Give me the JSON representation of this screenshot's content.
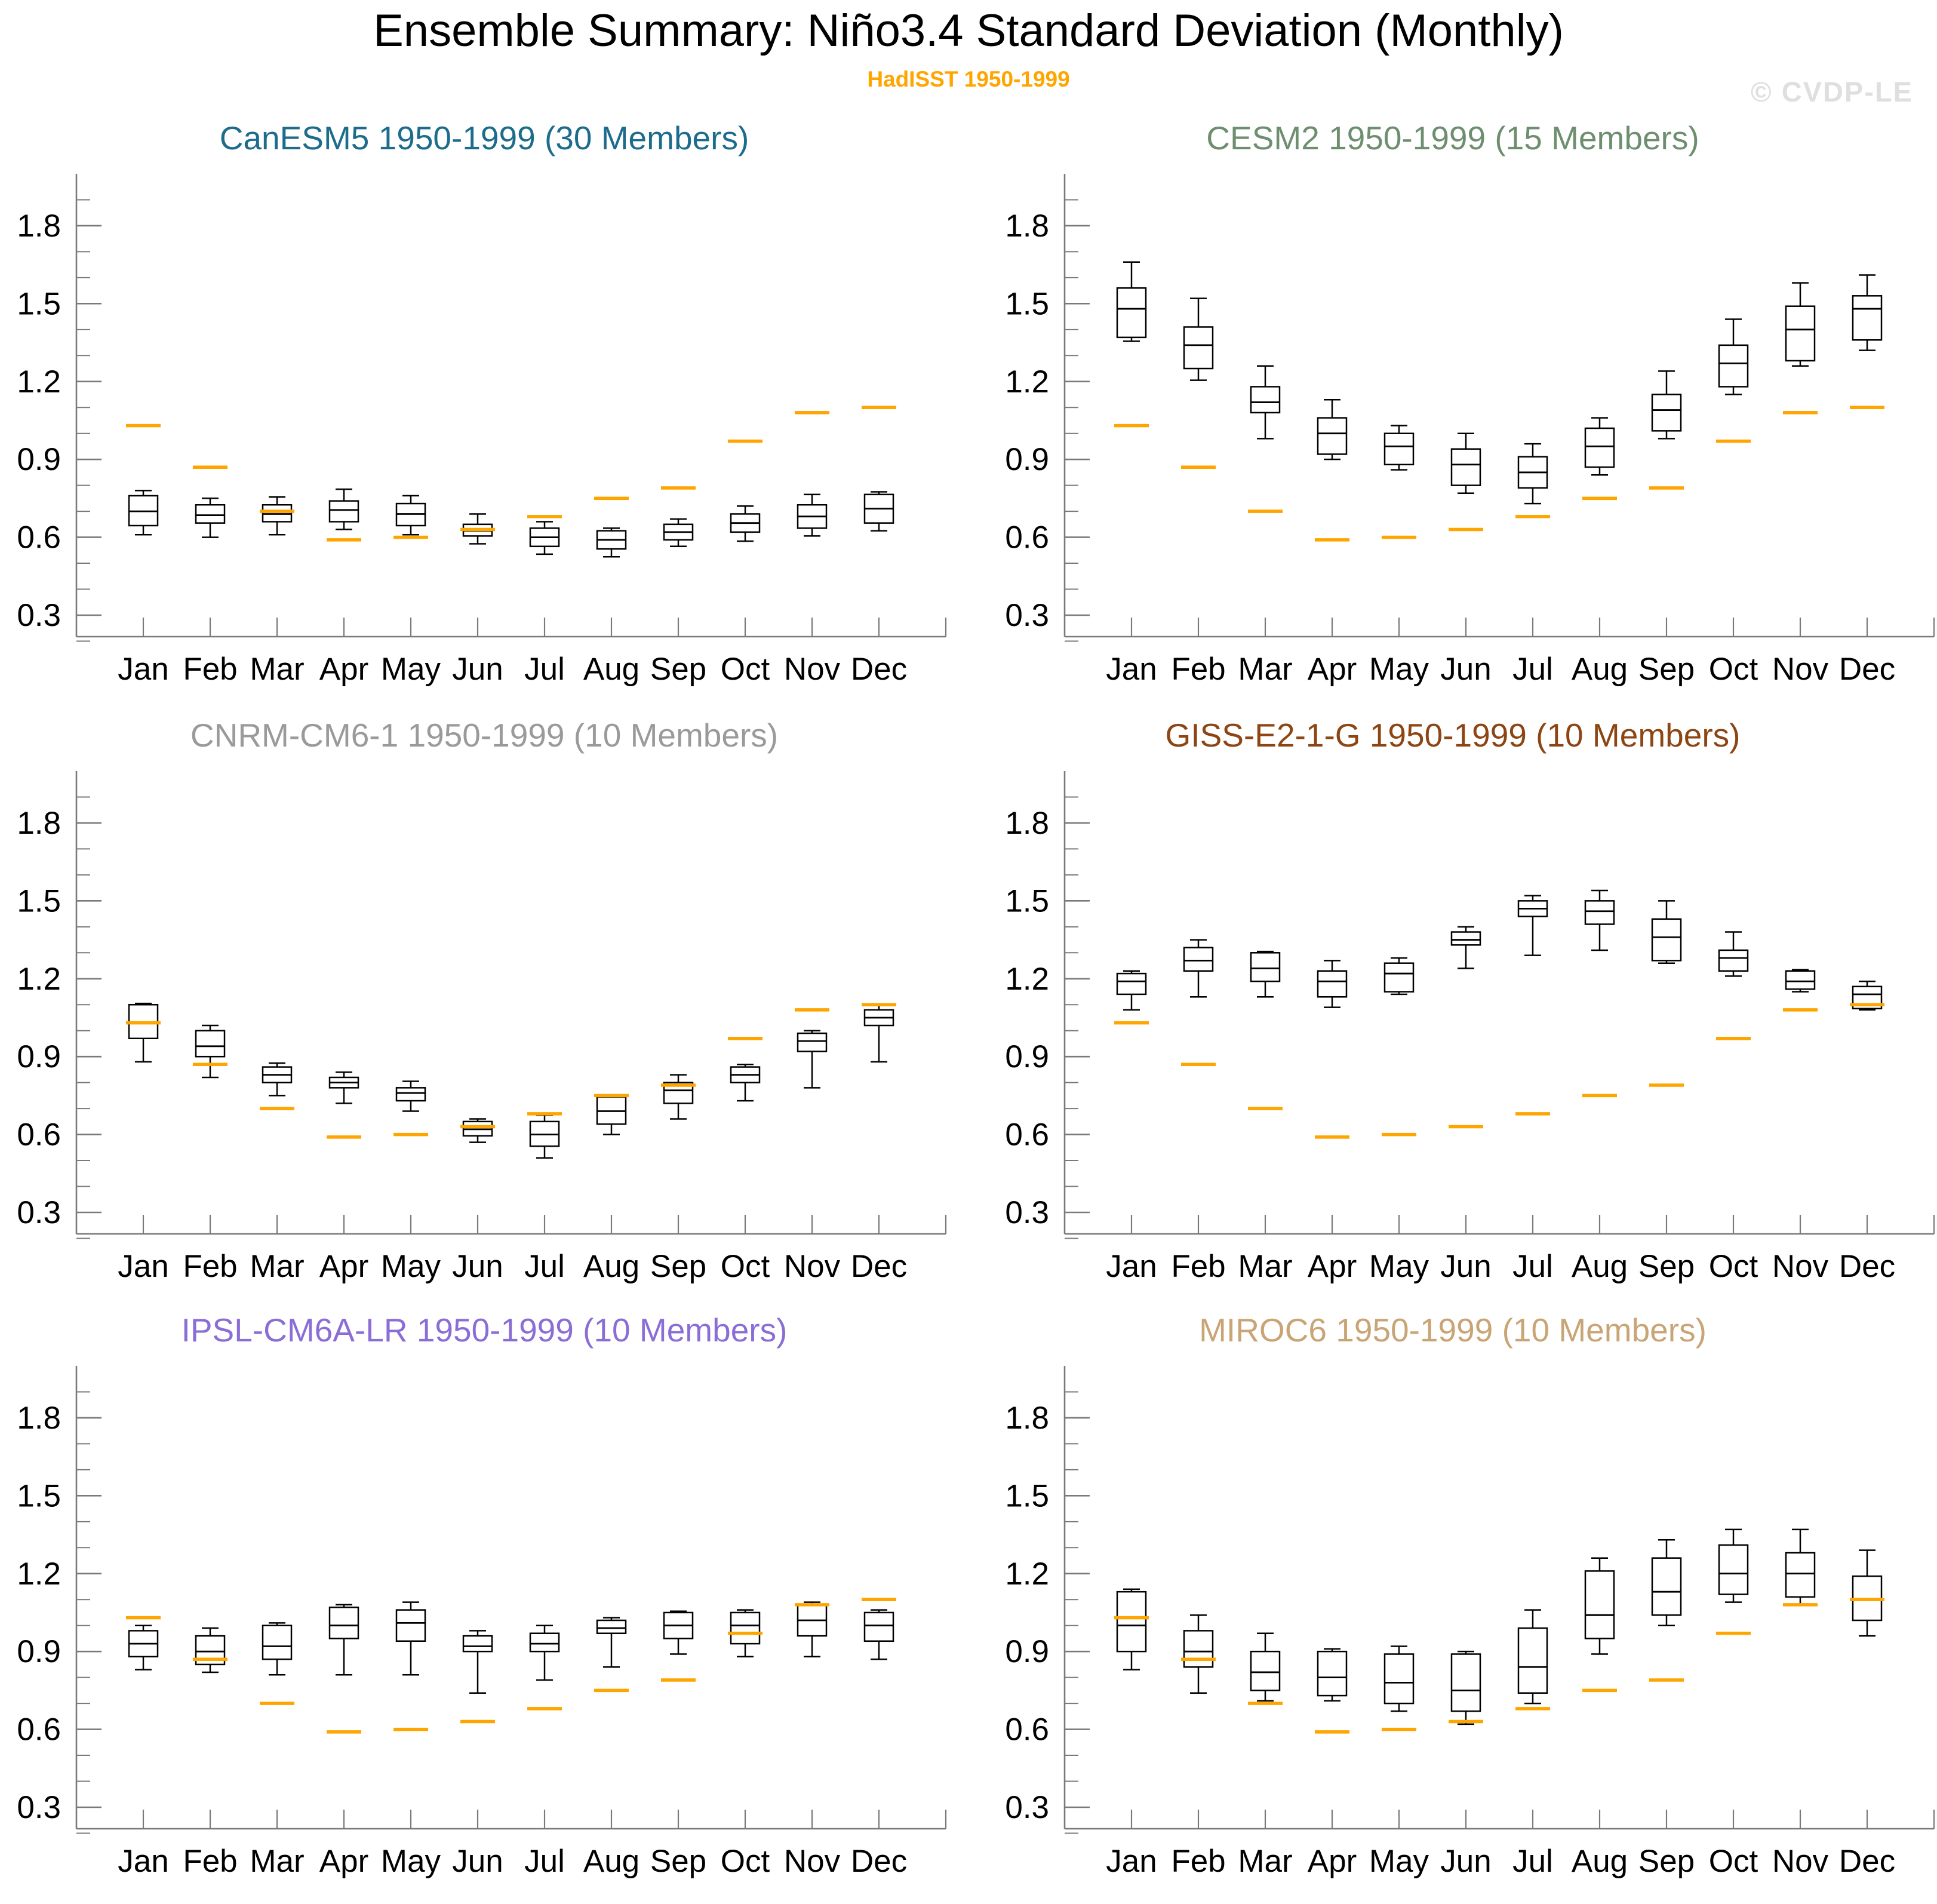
{
  "header": {
    "title": "Ensemble Summary: Niño3.4 Standard Deviation (Monthly)",
    "subtitle": "HadISST 1950-1999",
    "watermark": "© CVDP-LE"
  },
  "colors": {
    "observation": "#FFA500",
    "box_stroke": "#000000",
    "axis": "#7a7a7a",
    "text": "#000000",
    "watermark": "#dfdfdf"
  },
  "axis": {
    "ymin": 0.2,
    "ymax": 2.0,
    "major_step": 0.3,
    "minor_step": 0.1,
    "ytick_labels": [
      "0.3",
      "0.6",
      "0.9",
      "1.2",
      "1.5",
      "1.8"
    ],
    "yticks": [
      0.3,
      0.6,
      0.9,
      1.2,
      1.5,
      1.8
    ],
    "grid": false
  },
  "chart_data": {
    "type": "box",
    "title": "Ensemble Summary: Niño3.4 Standard Deviation (Monthly)",
    "categories": [
      "Jan",
      "Feb",
      "Mar",
      "Apr",
      "May",
      "Jun",
      "Jul",
      "Aug",
      "Sep",
      "Oct",
      "Nov",
      "Dec"
    ],
    "ylim": [
      0.2,
      2.0
    ],
    "yticks": [
      0.3,
      0.6,
      0.9,
      1.2,
      1.5,
      1.8
    ],
    "observation": {
      "label": "HadISST 1950-1999",
      "color": "#FFA500",
      "values": [
        1.03,
        0.87,
        0.7,
        0.59,
        0.6,
        0.63,
        0.68,
        0.75,
        0.79,
        0.97,
        1.08,
        1.1
      ]
    },
    "box_format": [
      "whisker_low",
      "q1",
      "median",
      "q3",
      "whisker_high"
    ],
    "panels": [
      {
        "model": "CanESM5",
        "title": "CanESM5 1950-1999 (30 Members)",
        "title_color": "#1d6c8b",
        "members": 30,
        "values": [
          [
            0.61,
            0.645,
            0.7,
            0.76,
            0.78
          ],
          [
            0.6,
            0.655,
            0.685,
            0.725,
            0.75
          ],
          [
            0.61,
            0.66,
            0.69,
            0.725,
            0.755
          ],
          [
            0.63,
            0.66,
            0.705,
            0.74,
            0.785
          ],
          [
            0.61,
            0.645,
            0.69,
            0.73,
            0.76
          ],
          [
            0.575,
            0.605,
            0.625,
            0.65,
            0.69
          ],
          [
            0.535,
            0.565,
            0.6,
            0.635,
            0.66
          ],
          [
            0.525,
            0.555,
            0.59,
            0.625,
            0.635
          ],
          [
            0.565,
            0.59,
            0.62,
            0.65,
            0.67
          ],
          [
            0.585,
            0.62,
            0.655,
            0.69,
            0.72
          ],
          [
            0.605,
            0.635,
            0.68,
            0.725,
            0.765
          ],
          [
            0.625,
            0.655,
            0.71,
            0.765,
            0.775
          ]
        ]
      },
      {
        "model": "CESM2",
        "title": "CESM2 1950-1999 (15 Members)",
        "title_color": "#6d8f70",
        "members": 15,
        "values": [
          [
            1.355,
            1.37,
            1.48,
            1.56,
            1.66
          ],
          [
            1.205,
            1.25,
            1.34,
            1.41,
            1.52
          ],
          [
            0.98,
            1.08,
            1.12,
            1.18,
            1.26
          ],
          [
            0.9,
            0.92,
            1.0,
            1.06,
            1.13
          ],
          [
            0.86,
            0.88,
            0.95,
            1.0,
            1.03
          ],
          [
            0.77,
            0.8,
            0.88,
            0.94,
            1.0
          ],
          [
            0.73,
            0.79,
            0.85,
            0.91,
            0.96
          ],
          [
            0.84,
            0.87,
            0.95,
            1.02,
            1.06
          ],
          [
            0.98,
            1.01,
            1.09,
            1.15,
            1.24
          ],
          [
            1.15,
            1.18,
            1.27,
            1.34,
            1.44
          ],
          [
            1.26,
            1.28,
            1.4,
            1.49,
            1.58
          ],
          [
            1.32,
            1.36,
            1.48,
            1.53,
            1.61
          ]
        ]
      },
      {
        "model": "CNRM-CM6-1",
        "title": "CNRM-CM6-1 1950-1999 (10 Members)",
        "title_color": "#9a9a9a",
        "members": 10,
        "values": [
          [
            0.88,
            0.97,
            1.03,
            1.1,
            1.105
          ],
          [
            0.82,
            0.9,
            0.94,
            1.0,
            1.02
          ],
          [
            0.75,
            0.8,
            0.83,
            0.86,
            0.875
          ],
          [
            0.72,
            0.78,
            0.8,
            0.82,
            0.84
          ],
          [
            0.69,
            0.73,
            0.76,
            0.78,
            0.805
          ],
          [
            0.57,
            0.595,
            0.62,
            0.65,
            0.66
          ],
          [
            0.51,
            0.555,
            0.6,
            0.65,
            0.675
          ],
          [
            0.6,
            0.64,
            0.69,
            0.745,
            0.75
          ],
          [
            0.66,
            0.72,
            0.77,
            0.8,
            0.83
          ],
          [
            0.73,
            0.8,
            0.83,
            0.86,
            0.87
          ],
          [
            0.78,
            0.92,
            0.96,
            0.99,
            1.0
          ],
          [
            0.88,
            1.02,
            1.05,
            1.08,
            1.1
          ]
        ]
      },
      {
        "model": "GISS-E2-1-G",
        "title": "GISS-E2-1-G 1950-1999 (10 Members)",
        "title_color": "#8c4513",
        "members": 10,
        "values": [
          [
            1.08,
            1.14,
            1.19,
            1.22,
            1.23
          ],
          [
            1.13,
            1.23,
            1.27,
            1.32,
            1.35
          ],
          [
            1.13,
            1.19,
            1.24,
            1.3,
            1.305
          ],
          [
            1.09,
            1.13,
            1.19,
            1.23,
            1.27
          ],
          [
            1.14,
            1.15,
            1.22,
            1.26,
            1.28
          ],
          [
            1.24,
            1.33,
            1.35,
            1.38,
            1.4
          ],
          [
            1.29,
            1.44,
            1.47,
            1.5,
            1.52
          ],
          [
            1.31,
            1.41,
            1.46,
            1.5,
            1.54
          ],
          [
            1.26,
            1.27,
            1.36,
            1.43,
            1.5
          ],
          [
            1.21,
            1.23,
            1.28,
            1.31,
            1.38
          ],
          [
            1.15,
            1.16,
            1.19,
            1.23,
            1.235
          ],
          [
            1.08,
            1.085,
            1.14,
            1.17,
            1.19
          ]
        ]
      },
      {
        "model": "IPSL-CM6A-LR",
        "title": "IPSL-CM6A-LR 1950-1999 (10 Members)",
        "title_color": "#8b6dd6",
        "members": 10,
        "values": [
          [
            0.83,
            0.88,
            0.93,
            0.98,
            1.0
          ],
          [
            0.82,
            0.85,
            0.9,
            0.96,
            0.99
          ],
          [
            0.81,
            0.87,
            0.92,
            1.0,
            1.01
          ],
          [
            0.81,
            0.95,
            1.0,
            1.07,
            1.08
          ],
          [
            0.81,
            0.94,
            1.01,
            1.06,
            1.09
          ],
          [
            0.74,
            0.9,
            0.92,
            0.96,
            0.98
          ],
          [
            0.79,
            0.9,
            0.93,
            0.97,
            1.0
          ],
          [
            0.84,
            0.97,
            0.99,
            1.02,
            1.03
          ],
          [
            0.89,
            0.95,
            1.0,
            1.05,
            1.055
          ],
          [
            0.88,
            0.93,
            1.0,
            1.05,
            1.06
          ],
          [
            0.88,
            0.96,
            1.02,
            1.08,
            1.09
          ],
          [
            0.87,
            0.94,
            1.0,
            1.05,
            1.06
          ]
        ]
      },
      {
        "model": "MIROC6",
        "title": "MIROC6 1950-1999 (10 Members)",
        "title_color": "#c9a475",
        "members": 10,
        "values": [
          [
            0.83,
            0.9,
            1.0,
            1.13,
            1.14
          ],
          [
            0.74,
            0.84,
            0.9,
            0.98,
            1.04
          ],
          [
            0.71,
            0.75,
            0.82,
            0.9,
            0.97
          ],
          [
            0.71,
            0.73,
            0.8,
            0.9,
            0.91
          ],
          [
            0.67,
            0.7,
            0.78,
            0.89,
            0.92
          ],
          [
            0.62,
            0.67,
            0.75,
            0.89,
            0.9
          ],
          [
            0.7,
            0.74,
            0.84,
            0.99,
            1.06
          ],
          [
            0.89,
            0.95,
            1.04,
            1.21,
            1.26
          ],
          [
            1.0,
            1.04,
            1.13,
            1.26,
            1.33
          ],
          [
            1.09,
            1.12,
            1.2,
            1.31,
            1.37
          ],
          [
            1.08,
            1.11,
            1.2,
            1.28,
            1.37
          ],
          [
            0.96,
            1.02,
            1.1,
            1.19,
            1.29
          ]
        ]
      }
    ]
  }
}
